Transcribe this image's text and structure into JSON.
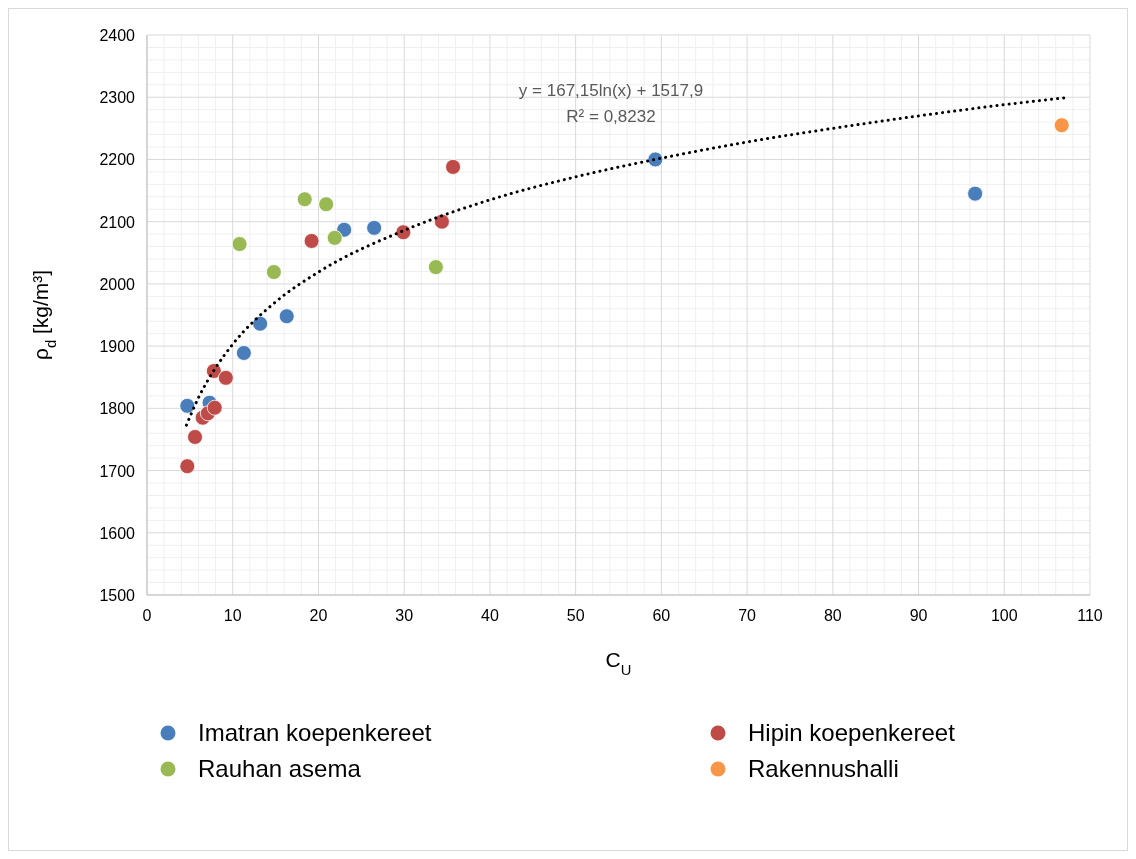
{
  "chart_data": {
    "type": "scatter",
    "xlabel": "C$_{U}$",
    "ylabel": "ρ$_{d}$ [kg/m³]",
    "xlim": [
      0,
      110
    ],
    "xticks": [
      0,
      10,
      20,
      30,
      40,
      50,
      60,
      70,
      80,
      90,
      100,
      110
    ],
    "ylim": [
      1500,
      2400
    ],
    "yticks": [
      1500,
      1600,
      1700,
      1800,
      1900,
      2000,
      2100,
      2200,
      2300,
      2400
    ],
    "grid": true,
    "legend": "bottom",
    "marker": "circle",
    "annotations": [
      "y = 167,15ln(x) + 1517,9",
      "R² = 0,8232"
    ],
    "series": [
      {
        "name": "Imatran koepenkereet",
        "color": "#4a7ebb",
        "x": [
          4.7,
          7.3,
          11.3,
          13.2,
          16.3,
          23.0,
          26.5,
          59.3,
          96.6
        ],
        "values": [
          1804,
          1809,
          1889,
          1936,
          1948,
          2087,
          2090,
          2200,
          2145
        ]
      },
      {
        "name": "Hipin koepenkereet",
        "color": "#be4b48",
        "x": [
          4.7,
          5.6,
          6.5,
          7.1,
          7.9,
          7.8,
          9.2,
          19.2,
          29.9,
          34.4,
          35.7
        ],
        "values": [
          1707,
          1754,
          1785,
          1792,
          1801,
          1860,
          1849,
          2069,
          2083,
          2100,
          2188
        ]
      },
      {
        "name": "Rauhan asema",
        "color": "#98b954",
        "x": [
          10.8,
          14.8,
          18.4,
          20.9,
          21.9,
          33.7
        ],
        "values": [
          2064,
          2019,
          2136,
          2128,
          2074,
          2027
        ]
      },
      {
        "name": "Rakennushalli",
        "color": "#f79646",
        "x": [
          106.7
        ],
        "values": [
          2255
        ]
      },
      {
        "type": "line",
        "color": "#000000",
        "line_style": "dotted",
        "marker": "none",
        "x": [
          4.6,
          6,
          8,
          10,
          15,
          20,
          30,
          40,
          50,
          60,
          70,
          80,
          90,
          100,
          107
        ],
        "values": [
          1773,
          1817,
          1865,
          1903,
          1971,
          2019,
          2086,
          2135,
          2172,
          2202,
          2228,
          2250,
          2270,
          2288,
          2299
        ]
      }
    ]
  }
}
